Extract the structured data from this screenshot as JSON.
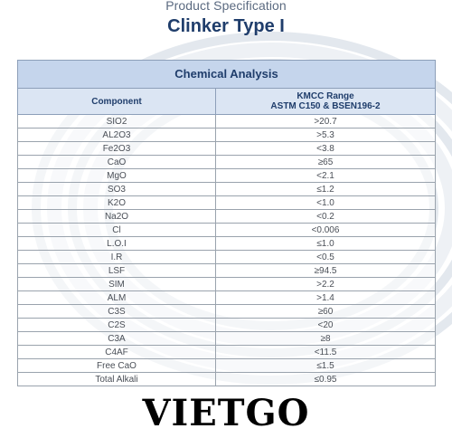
{
  "header": {
    "subtitle": "Product Specification",
    "title": "Clinker Type I"
  },
  "table": {
    "caption": "Chemical Analysis",
    "columns": {
      "component": "Component",
      "range_line1": "KMCC Range",
      "range_line2": "ASTM C150 & BSEN196-2"
    },
    "rows": [
      {
        "component": "SIO2",
        "range": ">20.7"
      },
      {
        "component": "AL2O3",
        "range": ">5.3"
      },
      {
        "component": "Fe2O3",
        "range": "<3.8"
      },
      {
        "component": "CaO",
        "range": "≥65"
      },
      {
        "component": "MgO",
        "range": "<2.1"
      },
      {
        "component": "SO3",
        "range": "≤1.2"
      },
      {
        "component": "K2O",
        "range": "<1.0"
      },
      {
        "component": "Na2O",
        "range": "<0.2"
      },
      {
        "component": "Cl",
        "range": "<0.006"
      },
      {
        "component": "L.O.I",
        "range": "≤1.0"
      },
      {
        "component": "I.R",
        "range": "<0.5"
      },
      {
        "component": "LSF",
        "range": "≥94.5"
      },
      {
        "component": "SIM",
        "range": ">2.2"
      },
      {
        "component": "ALM",
        "range": ">1.4"
      },
      {
        "component": "C3S",
        "range": "≥60"
      },
      {
        "component": "C2S",
        "range": "<20"
      },
      {
        "component": "C3A",
        "range": "≥8"
      },
      {
        "component": "C4AF",
        "range": "<11.5"
      },
      {
        "component": "Free CaO",
        "range": "≤1.5"
      },
      {
        "component": "Total Alkali",
        "range": "≤0.95"
      }
    ]
  },
  "footer": {
    "brand": "VIETGO"
  },
  "colors": {
    "title": "#1f3d6b",
    "caption_bg": "#c5d5ec",
    "header_bg": "#dbe5f3"
  }
}
